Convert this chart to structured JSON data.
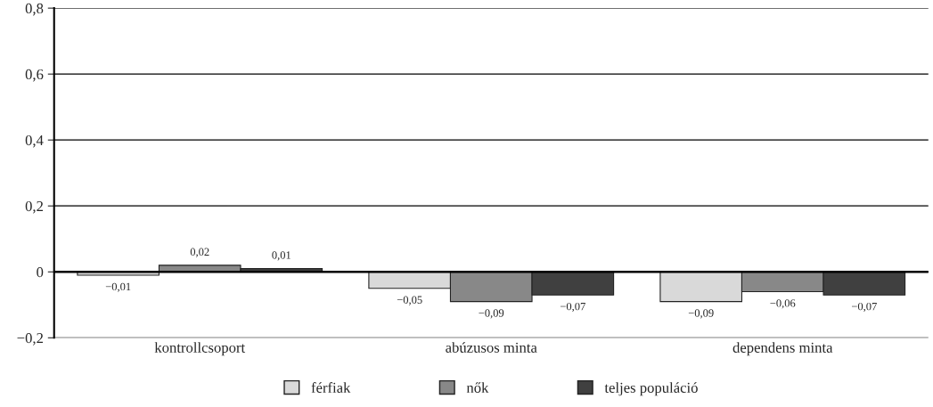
{
  "chart_data": {
    "type": "bar",
    "categories": [
      "kontrollcsoport",
      "abúzusos minta",
      "dependens minta"
    ],
    "series": [
      {
        "name": "férfiak",
        "color": "#d9d9d9",
        "values": [
          -0.01,
          -0.05,
          -0.09
        ],
        "value_labels": [
          "−0,01",
          "−0,05",
          "−0,09"
        ]
      },
      {
        "name": "nők",
        "color": "#888888",
        "values": [
          0.02,
          -0.09,
          -0.06
        ],
        "value_labels": [
          "0,02",
          "−0,09",
          "−0,06"
        ]
      },
      {
        "name": "teljes populáció",
        "color": "#404040",
        "values": [
          0.01,
          -0.07,
          -0.07
        ],
        "value_labels": [
          "0,01",
          "−0,07",
          "−0,07"
        ]
      }
    ],
    "ylim": [
      -0.2,
      0.8
    ],
    "yticks": [
      {
        "value": -0.2,
        "label": "−0,2"
      },
      0,
      {
        "value": 0.2,
        "label": "0,2"
      },
      {
        "value": 0.4,
        "label": "0,4"
      },
      {
        "value": 0.6,
        "label": "0,6"
      },
      {
        "value": 0.8,
        "label": "0,8"
      }
    ],
    "grid": "y",
    "legend": "bottom"
  }
}
